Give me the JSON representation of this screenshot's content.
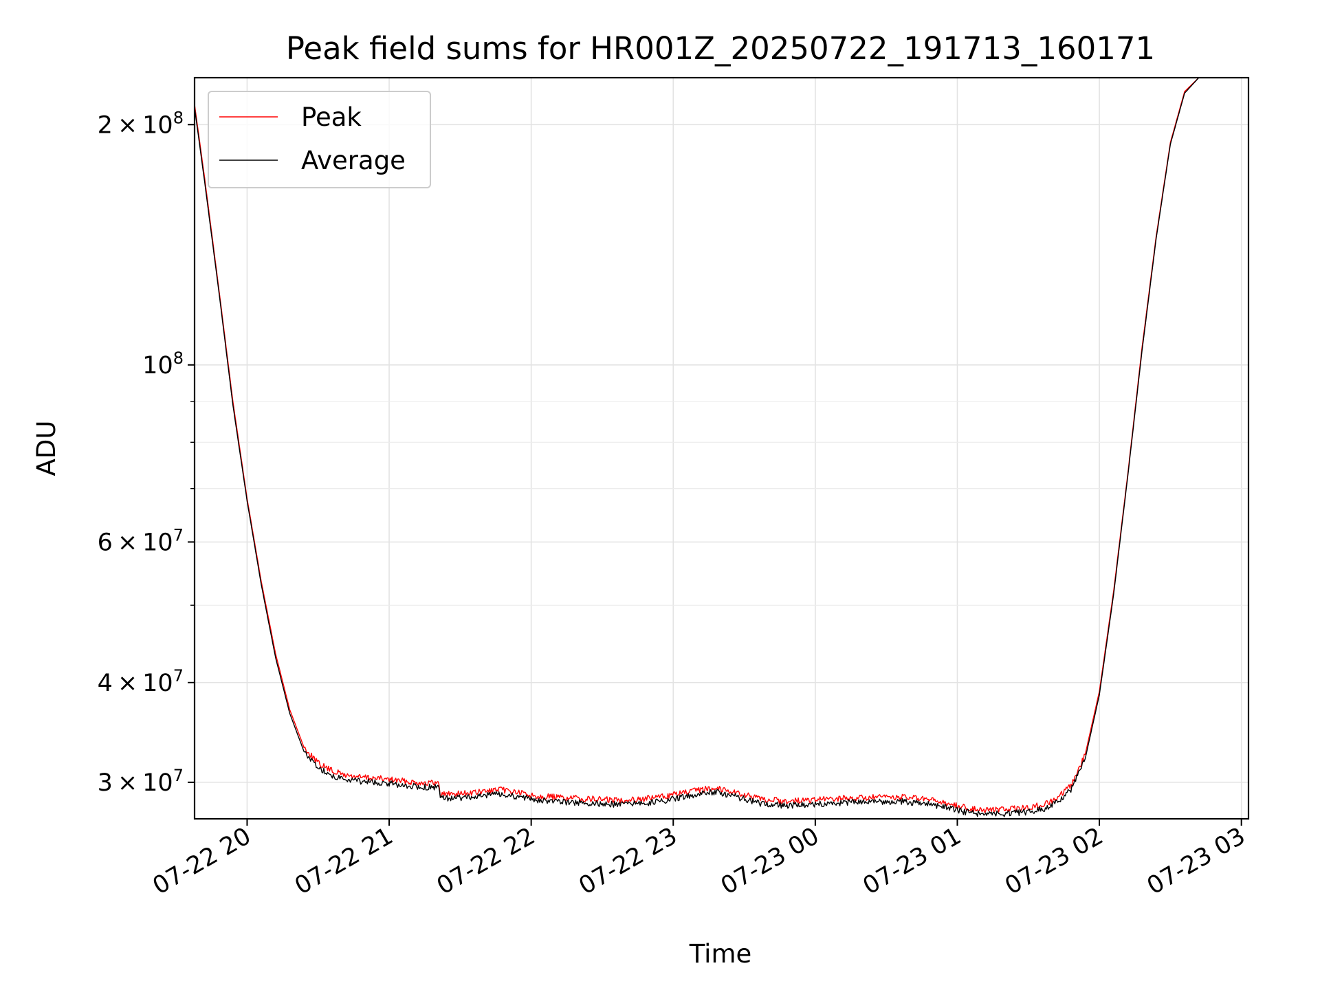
{
  "chart_data": {
    "type": "line",
    "title": "Peak field sums for HR001Z_20250722_191713_160171",
    "xlabel": "Time",
    "ylabel": "ADU",
    "x_unit": "hour",
    "x_ticks": [
      {
        "label": "07-22 20",
        "value": 20
      },
      {
        "label": "07-22 21",
        "value": 21
      },
      {
        "label": "07-22 22",
        "value": 22
      },
      {
        "label": "07-22 23",
        "value": 23
      },
      {
        "label": "07-23 00",
        "value": 24
      },
      {
        "label": "07-23 01",
        "value": 25
      },
      {
        "label": "07-23 02",
        "value": 26
      },
      {
        "label": "07-23 03",
        "value": 27
      }
    ],
    "y_scale": "log",
    "y_ticks": [
      {
        "mant": "2",
        "exp": "8",
        "value": 200000000
      },
      {
        "mant": "",
        "exp": "8",
        "value": 100000000
      },
      {
        "mant": "6",
        "exp": "7",
        "value": 60000000
      },
      {
        "mant": "4",
        "exp": "7",
        "value": 40000000
      },
      {
        "mant": "3",
        "exp": "7",
        "value": 30000000
      }
    ],
    "y_minor_ticks": [
      50000000,
      70000000,
      80000000,
      90000000
    ],
    "xlim": [
      19.63,
      27.05
    ],
    "ylim": [
      27000000,
      229000000
    ],
    "grid": true,
    "legend_position": "upper left",
    "series": [
      {
        "name": "Peak",
        "color": "#ff0000",
        "points": [
          [
            19.63,
            212000000
          ],
          [
            19.7,
            172000000
          ],
          [
            19.8,
            125000000
          ],
          [
            19.9,
            90000000
          ],
          [
            20.0,
            68000000
          ],
          [
            20.1,
            53500000
          ],
          [
            20.2,
            43500000
          ],
          [
            20.3,
            37000000
          ],
          [
            20.4,
            33200000
          ],
          [
            20.5,
            31700000
          ],
          [
            20.6,
            31000000
          ],
          [
            20.7,
            30600000
          ],
          [
            20.8,
            30450000
          ],
          [
            20.9,
            30350000
          ],
          [
            21.0,
            30250000
          ],
          [
            21.1,
            30100000
          ],
          [
            21.2,
            30000000
          ],
          [
            21.35,
            29900000
          ],
          [
            21.36,
            29000000
          ],
          [
            21.5,
            29050000
          ],
          [
            21.6,
            29100000
          ],
          [
            21.7,
            29250000
          ],
          [
            21.8,
            29350000
          ],
          [
            21.9,
            29150000
          ],
          [
            22.0,
            28900000
          ],
          [
            22.2,
            28700000
          ],
          [
            22.4,
            28600000
          ],
          [
            22.6,
            28500000
          ],
          [
            22.8,
            28600000
          ],
          [
            22.95,
            28850000
          ],
          [
            23.1,
            29150000
          ],
          [
            23.3,
            29550000
          ],
          [
            23.45,
            29100000
          ],
          [
            23.6,
            28600000
          ],
          [
            23.8,
            28400000
          ],
          [
            24.0,
            28500000
          ],
          [
            24.2,
            28650000
          ],
          [
            24.4,
            28700000
          ],
          [
            24.6,
            28750000
          ],
          [
            24.75,
            28600000
          ],
          [
            24.9,
            28300000
          ],
          [
            25.05,
            27900000
          ],
          [
            25.2,
            27700000
          ],
          [
            25.35,
            27750000
          ],
          [
            25.5,
            27900000
          ],
          [
            25.6,
            28100000
          ],
          [
            25.7,
            28600000
          ],
          [
            25.8,
            29700000
          ],
          [
            25.9,
            32500000
          ],
          [
            26.0,
            39000000
          ],
          [
            26.1,
            52000000
          ],
          [
            26.2,
            73000000
          ],
          [
            26.3,
            105000000
          ],
          [
            26.4,
            145000000
          ],
          [
            26.5,
            190000000
          ],
          [
            26.6,
            220000000
          ],
          [
            26.7,
            229000000
          ]
        ]
      },
      {
        "name": "Average",
        "color": "#000000",
        "points": [
          [
            19.63,
            210000000
          ],
          [
            19.7,
            170000000
          ],
          [
            19.8,
            124000000
          ],
          [
            19.9,
            89000000
          ],
          [
            20.0,
            67500000
          ],
          [
            20.1,
            53000000
          ],
          [
            20.2,
            43000000
          ],
          [
            20.3,
            36600000
          ],
          [
            20.4,
            32800000
          ],
          [
            20.5,
            31300000
          ],
          [
            20.6,
            30600000
          ],
          [
            20.7,
            30250000
          ],
          [
            20.8,
            30100000
          ],
          [
            20.9,
            30000000
          ],
          [
            21.0,
            29900000
          ],
          [
            21.1,
            29750000
          ],
          [
            21.2,
            29650000
          ],
          [
            21.35,
            29550000
          ],
          [
            21.36,
            28650000
          ],
          [
            21.5,
            28700000
          ],
          [
            21.6,
            28750000
          ],
          [
            21.7,
            28900000
          ],
          [
            21.8,
            29000000
          ],
          [
            21.9,
            28800000
          ],
          [
            22.0,
            28550000
          ],
          [
            22.2,
            28350000
          ],
          [
            22.4,
            28250000
          ],
          [
            22.6,
            28150000
          ],
          [
            22.8,
            28250000
          ],
          [
            22.95,
            28500000
          ],
          [
            23.1,
            28800000
          ],
          [
            23.3,
            29200000
          ],
          [
            23.45,
            28750000
          ],
          [
            23.6,
            28250000
          ],
          [
            23.8,
            28050000
          ],
          [
            24.0,
            28150000
          ],
          [
            24.2,
            28300000
          ],
          [
            24.4,
            28350000
          ],
          [
            24.6,
            28400000
          ],
          [
            24.75,
            28250000
          ],
          [
            24.9,
            27950000
          ],
          [
            25.05,
            27550000
          ],
          [
            25.2,
            27350000
          ],
          [
            25.35,
            27400000
          ],
          [
            25.5,
            27550000
          ],
          [
            25.6,
            27750000
          ],
          [
            25.7,
            28250000
          ],
          [
            25.8,
            29350000
          ],
          [
            25.9,
            32100000
          ],
          [
            26.0,
            38600000
          ],
          [
            26.1,
            51500000
          ],
          [
            26.2,
            72500000
          ],
          [
            26.3,
            104000000
          ],
          [
            26.4,
            144000000
          ],
          [
            26.5,
            189000000
          ],
          [
            26.6,
            219000000
          ],
          [
            26.7,
            229000000
          ]
        ]
      }
    ]
  }
}
